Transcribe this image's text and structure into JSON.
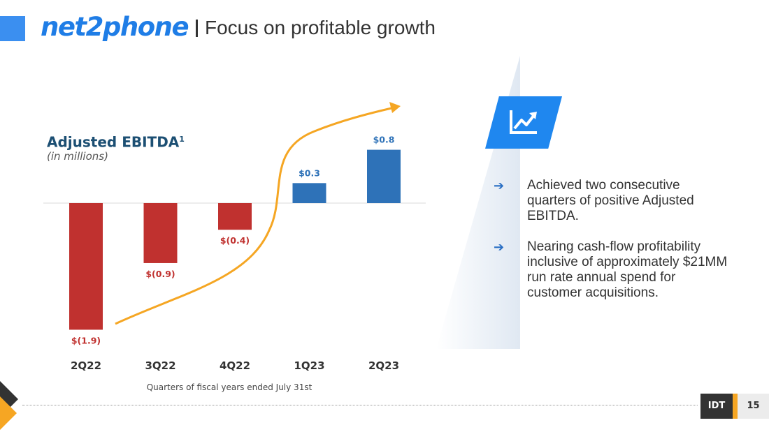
{
  "header": {
    "logo_text": "net2phone",
    "title": "Focus on profitable growth"
  },
  "chart_data": {
    "type": "bar",
    "title": "Adjusted EBITDA",
    "title_superscript": "1",
    "subtitle": "(in millions)",
    "categories": [
      "2Q22",
      "3Q22",
      "4Q22",
      "1Q23",
      "2Q23"
    ],
    "values": [
      -1.9,
      -0.9,
      -0.4,
      0.3,
      0.8
    ],
    "value_labels": [
      "$(1.9)",
      "$(0.9)",
      "$(0.4)",
      "$0.3",
      "$0.8"
    ],
    "xlabel": "Quarters of fiscal years ended July 31st",
    "ylabel": "",
    "ylim": [
      -1.9,
      0.8
    ],
    "grid": false,
    "colors": {
      "negative": "#c0312f",
      "positive": "#2e72b8",
      "trend_arrow": "#f5a623"
    }
  },
  "side": {
    "icon": "trend-up-icon",
    "bullets": [
      "Achieved two consecutive quarters of positive Adjusted EBITDA.",
      "Nearing cash-flow profitability inclusive of approximately $21MM run rate annual spend for customer acquisitions."
    ]
  },
  "footer": {
    "brand": "IDT",
    "page_number": "15"
  }
}
